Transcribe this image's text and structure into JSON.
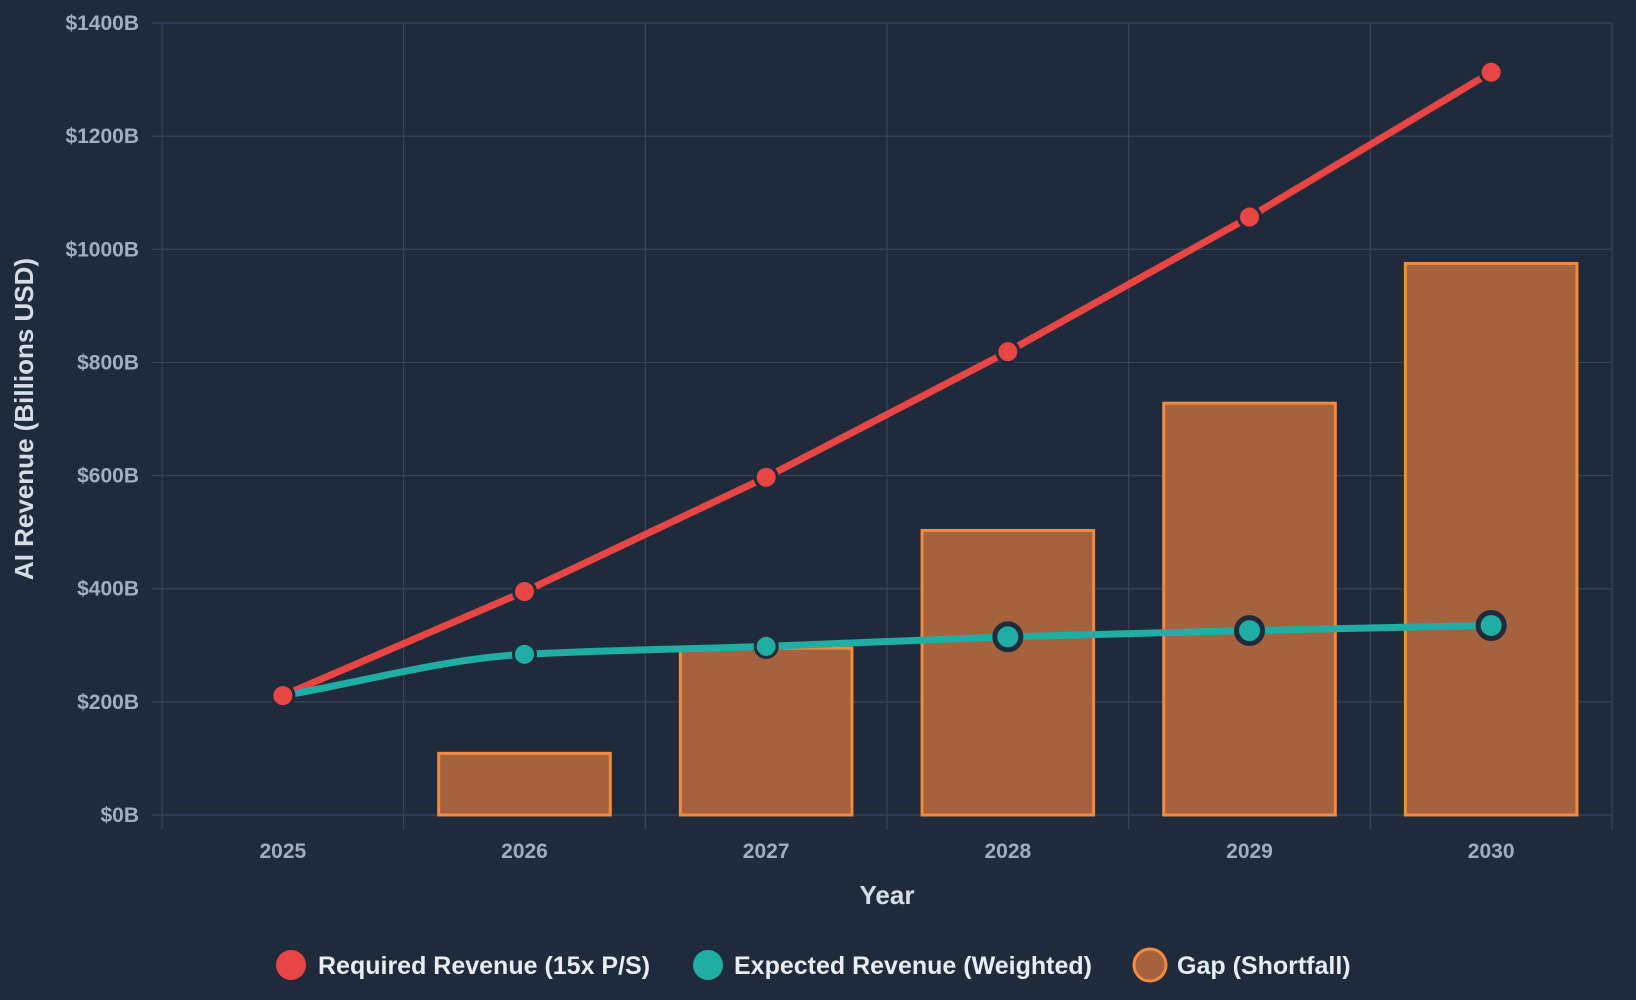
{
  "chart_data": {
    "type": "bar+line",
    "title": "",
    "xlabel": "Year",
    "ylabel": "AI Revenue (Billions USD)",
    "categories": [
      "2025",
      "2026",
      "2027",
      "2028",
      "2029",
      "2030"
    ],
    "ylim": [
      0,
      1400
    ],
    "yticks": [
      0,
      200,
      400,
      600,
      800,
      1000,
      1200,
      1400
    ],
    "ytick_labels": [
      "$0B",
      "$200B",
      "$400B",
      "$600B",
      "$800B",
      "$1000B",
      "$1200B",
      "$1400B"
    ],
    "grid": true,
    "legend_position": "bottom-center",
    "series": [
      {
        "name": "Required Revenue (15x P/S)",
        "kind": "line",
        "color": "#e84545",
        "values": [
          211,
          395,
          597,
          819,
          1057,
          1313
        ]
      },
      {
        "name": "Expected Revenue (Weighted)",
        "kind": "line",
        "color": "#20ada3",
        "values": [
          211,
          284,
          298,
          315,
          326,
          335
        ]
      },
      {
        "name": "Gap (Shortfall)",
        "kind": "bar",
        "color": "#a5623f",
        "border_color": "#f28b3d",
        "values": [
          0,
          109,
          295,
          503,
          728,
          975
        ]
      }
    ]
  }
}
